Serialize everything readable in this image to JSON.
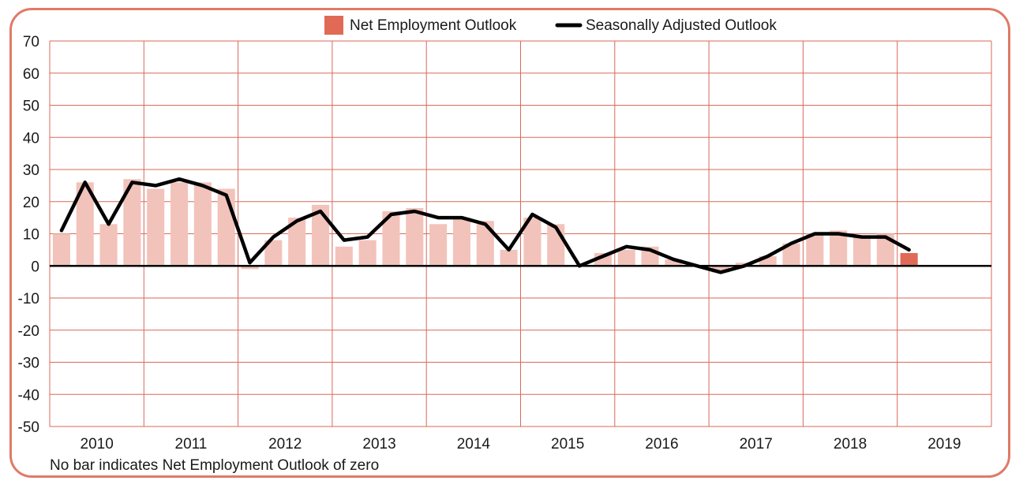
{
  "chart_data": {
    "type": "bar",
    "title": "",
    "xlabel": "",
    "ylabel": "",
    "ylim": [
      -50,
      70
    ],
    "y_ticks": [
      70,
      60,
      50,
      40,
      30,
      20,
      10,
      0,
      -10,
      -20,
      -30,
      -40,
      -50
    ],
    "years": [
      "2010",
      "2011",
      "2012",
      "2013",
      "2014",
      "2015",
      "2016",
      "2017",
      "2018",
      "2019"
    ],
    "quarters_per_year": 4,
    "grid": "on",
    "legend_position": "top",
    "note": "No bar indicates Net Employment Outlook of zero",
    "series": [
      {
        "name": "Net Employment Outlook",
        "kind": "bar",
        "color": "#f2c3bb",
        "highlight_color": "#e06a55",
        "highlight_index": 36,
        "values": [
          10,
          26,
          13,
          27,
          24,
          26,
          26,
          24,
          -1,
          8,
          15,
          19,
          6,
          8,
          17,
          18,
          13,
          15,
          14,
          5,
          15,
          13,
          0,
          4,
          5,
          6,
          2,
          0,
          -2,
          1,
          3,
          7,
          10,
          11,
          9,
          10,
          4,
          0,
          0,
          0
        ]
      },
      {
        "name": "Seasonally Adjusted Outlook",
        "kind": "line",
        "color": "#000000",
        "values": [
          11,
          26,
          13,
          26,
          25,
          27,
          25,
          22,
          1,
          9,
          14,
          17,
          8,
          9,
          16,
          17,
          15,
          15,
          13,
          5,
          16,
          12,
          0,
          3,
          6,
          5,
          2,
          0,
          -2,
          0,
          3,
          7,
          10,
          10,
          9,
          9,
          5
        ]
      }
    ]
  }
}
